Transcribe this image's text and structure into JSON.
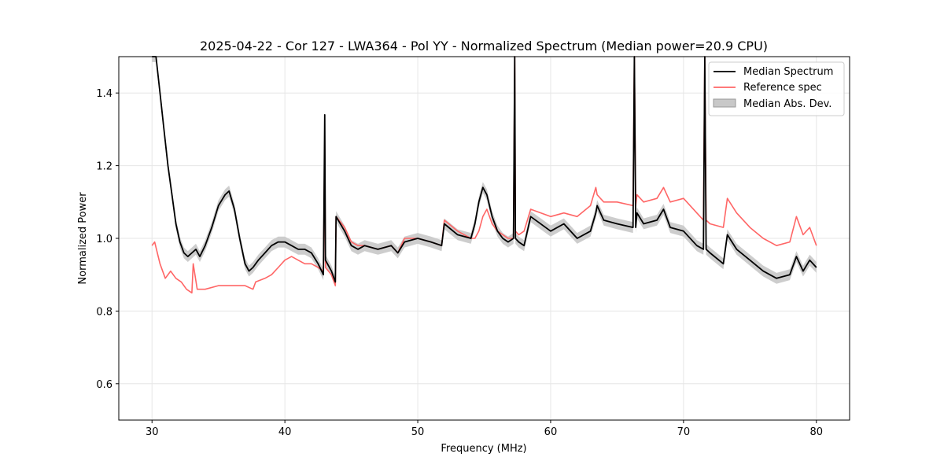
{
  "chart_data": {
    "type": "line",
    "title": "2025-04-22 - Cor 127 - LWA364 - Pol YY - Normalized Spectrum (Median power=20.9 CPU)",
    "xlabel": "Frequency (MHz)",
    "ylabel": "Normalized Power",
    "xlim": [
      27.5,
      82.5
    ],
    "ylim": [
      0.5,
      1.5
    ],
    "xticks": [
      30,
      40,
      50,
      60,
      70,
      80
    ],
    "yticks": [
      0.6,
      0.8,
      1.0,
      1.2,
      1.4
    ],
    "xtick_labels": [
      "30",
      "40",
      "50",
      "60",
      "70",
      "80"
    ],
    "ytick_labels": [
      "0.6",
      "0.8",
      "1.0",
      "1.2",
      "1.4"
    ],
    "grid": true,
    "legend_position": "top-right",
    "colors": {
      "median": "#000000",
      "reference": "#ff6666",
      "mad": "#c8c8c8",
      "overlap": "#8b0000"
    },
    "legend": [
      "Median Spectrum",
      "Reference spec",
      "Median Abs. Dev."
    ],
    "series": [
      {
        "name": "Median Spectrum",
        "x": [
          30.0,
          30.3,
          30.6,
          30.9,
          31.2,
          31.5,
          31.8,
          32.1,
          32.4,
          32.7,
          33.0,
          33.3,
          33.6,
          34.0,
          34.5,
          35.0,
          35.5,
          35.8,
          36.2,
          36.6,
          37.0,
          37.3,
          37.6,
          38.0,
          38.5,
          39.0,
          39.5,
          40.0,
          40.5,
          41.0,
          41.5,
          42.0,
          42.5,
          42.9,
          43.0,
          43.05,
          43.5,
          43.8,
          43.85,
          44.5,
          45.0,
          45.5,
          46.0,
          47.0,
          48.0,
          48.5,
          49.0,
          50.0,
          51.0,
          51.8,
          52.0,
          53.0,
          54.0,
          54.3,
          54.6,
          54.9,
          55.2,
          55.6,
          56.0,
          56.4,
          56.8,
          57.2,
          57.3,
          57.35,
          57.6,
          58.0,
          58.5,
          60.0,
          61.0,
          62.0,
          63.0,
          63.4,
          63.5,
          64.0,
          65.0,
          66.2,
          66.3,
          66.4,
          66.5,
          67.0,
          68.0,
          68.5,
          69.0,
          70.0,
          71.0,
          71.5,
          71.6,
          71.7,
          72.0,
          73.0,
          73.3,
          74.0,
          75.0,
          76.0,
          77.0,
          78.0,
          78.5,
          79.0,
          79.5,
          80.0
        ],
        "values": [
          1.5,
          1.5,
          1.4,
          1.3,
          1.2,
          1.12,
          1.04,
          0.99,
          0.96,
          0.95,
          0.96,
          0.97,
          0.95,
          0.98,
          1.03,
          1.09,
          1.12,
          1.13,
          1.08,
          1.0,
          0.93,
          0.91,
          0.92,
          0.94,
          0.96,
          0.98,
          0.99,
          0.99,
          0.98,
          0.97,
          0.97,
          0.96,
          0.93,
          0.9,
          1.34,
          0.94,
          0.91,
          0.88,
          1.06,
          1.02,
          0.98,
          0.97,
          0.98,
          0.97,
          0.98,
          0.96,
          0.99,
          1.0,
          0.99,
          0.98,
          1.04,
          1.01,
          1.0,
          1.04,
          1.1,
          1.14,
          1.12,
          1.06,
          1.02,
          1.0,
          0.99,
          1.0,
          1.5,
          1.0,
          0.99,
          0.98,
          1.06,
          1.02,
          1.04,
          1.0,
          1.02,
          1.07,
          1.09,
          1.05,
          1.04,
          1.03,
          1.5,
          1.03,
          1.07,
          1.04,
          1.05,
          1.08,
          1.03,
          1.02,
          0.98,
          0.97,
          1.5,
          0.97,
          0.96,
          0.93,
          1.01,
          0.97,
          0.94,
          0.91,
          0.89,
          0.9,
          0.95,
          0.91,
          0.94,
          0.92
        ]
      },
      {
        "name": "Reference spec",
        "x": [
          30.0,
          30.2,
          30.4,
          30.6,
          31.0,
          31.4,
          31.8,
          32.2,
          32.6,
          33.0,
          33.1,
          33.4,
          34.0,
          35.0,
          36.0,
          37.0,
          37.6,
          37.8,
          38.5,
          39.0,
          39.5,
          40.0,
          40.5,
          41.0,
          41.5,
          42.0,
          42.5,
          42.9,
          43.0,
          43.05,
          43.5,
          43.8,
          43.85,
          44.5,
          45.0,
          45.5,
          46.0,
          47.0,
          48.0,
          48.5,
          49.0,
          50.0,
          51.0,
          51.8,
          52.0,
          53.0,
          54.0,
          54.3,
          54.6,
          54.9,
          55.2,
          55.6,
          56.0,
          56.4,
          56.8,
          57.2,
          57.3,
          57.35,
          57.6,
          58.0,
          58.5,
          60.0,
          61.0,
          62.0,
          63.0,
          63.4,
          63.5,
          64.0,
          65.0,
          66.2,
          66.3,
          66.4,
          66.5,
          67.0,
          68.0,
          68.5,
          69.0,
          70.0,
          71.0,
          71.5,
          71.6,
          71.7,
          72.0,
          73.0,
          73.3,
          74.0,
          75.0,
          76.0,
          77.0,
          78.0,
          78.5,
          79.0,
          79.5,
          80.0
        ],
        "values": [
          0.98,
          0.99,
          0.96,
          0.93,
          0.89,
          0.91,
          0.89,
          0.88,
          0.86,
          0.85,
          0.93,
          0.86,
          0.86,
          0.87,
          0.87,
          0.87,
          0.86,
          0.88,
          0.89,
          0.9,
          0.92,
          0.94,
          0.95,
          0.94,
          0.93,
          0.93,
          0.92,
          0.91,
          1.27,
          0.92,
          0.9,
          0.87,
          1.06,
          1.03,
          0.99,
          0.98,
          0.98,
          0.97,
          0.98,
          0.96,
          1.0,
          1.0,
          0.99,
          0.98,
          1.05,
          1.02,
          1.0,
          1.0,
          1.02,
          1.06,
          1.08,
          1.04,
          1.02,
          1.01,
          1.0,
          1.0,
          1.5,
          1.02,
          1.01,
          1.02,
          1.08,
          1.06,
          1.07,
          1.06,
          1.09,
          1.14,
          1.12,
          1.1,
          1.1,
          1.09,
          1.5,
          1.09,
          1.12,
          1.1,
          1.11,
          1.14,
          1.1,
          1.11,
          1.07,
          1.05,
          1.5,
          1.05,
          1.04,
          1.03,
          1.11,
          1.07,
          1.03,
          1.0,
          0.98,
          0.99,
          1.06,
          1.01,
          1.03,
          0.98
        ]
      }
    ],
    "spread": {
      "name": "Median Abs. Dev.",
      "half_width": 0.015
    }
  }
}
